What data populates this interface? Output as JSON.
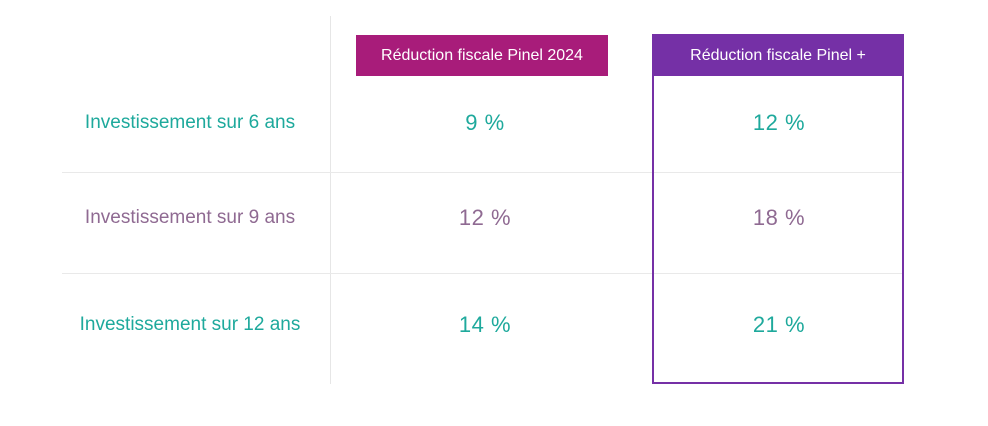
{
  "chart_data": {
    "type": "table",
    "columns": [
      "Réduction fiscale Pinel 2024",
      "Réduction fiscale Pinel +"
    ],
    "rows": [
      {
        "label": "Investissement sur 6 ans",
        "values": [
          "9 %",
          "12 %"
        ]
      },
      {
        "label": "Investissement sur 9 ans",
        "values": [
          "12 %",
          "18 %"
        ]
      },
      {
        "label": "Investissement sur 12 ans",
        "values": [
          "14 %",
          "21 %"
        ]
      }
    ]
  },
  "colors": {
    "pinel_header": "#a81c7a",
    "pinel_plus_header": "#7530a6",
    "teal_text": "#1ea99c",
    "mauve_text": "#8f6a92"
  }
}
